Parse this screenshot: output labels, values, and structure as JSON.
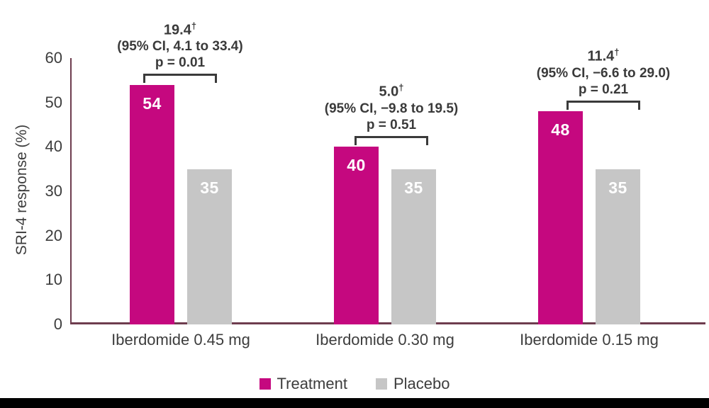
{
  "chart_data": {
    "type": "bar",
    "title": "",
    "xlabel": "",
    "ylabel": "SRI-4 response (%)",
    "ylim": [
      0,
      60
    ],
    "yticks": [
      0,
      10,
      20,
      30,
      40,
      50,
      60
    ],
    "grid": false,
    "legend_position": "bottom",
    "categories": [
      "Iberdomide 0.45 mg",
      "Iberdomide 0.30 mg",
      "Iberdomide 0.15 mg"
    ],
    "series": [
      {
        "name": "Treatment",
        "color": "#C5087F",
        "values": [
          54,
          40,
          48
        ]
      },
      {
        "name": "Placebo",
        "color": "#C6C6C6",
        "values": [
          35,
          35,
          35
        ]
      }
    ],
    "annotations": [
      {
        "diff": "19.4",
        "dagger": "†",
        "ci": "(95% CI, 4.1 to 33.4)",
        "p": "p = 0.01"
      },
      {
        "diff": "5.0",
        "dagger": "†",
        "ci": "(95% CI, −9.8 to 19.5)",
        "p": "p = 0.51"
      },
      {
        "diff": "11.4",
        "dagger": "†",
        "ci": "(95% CI, −6.6 to 29.0)",
        "p": "p = 0.21"
      }
    ],
    "axis_color": "#6E3C4E",
    "text_color": "#3D3D3D",
    "annotation_color": "#3A3A3A",
    "value_label_color": "#FFFFFF",
    "footer_bar_color": "#000000",
    "background_color": "#FFFFFF"
  }
}
